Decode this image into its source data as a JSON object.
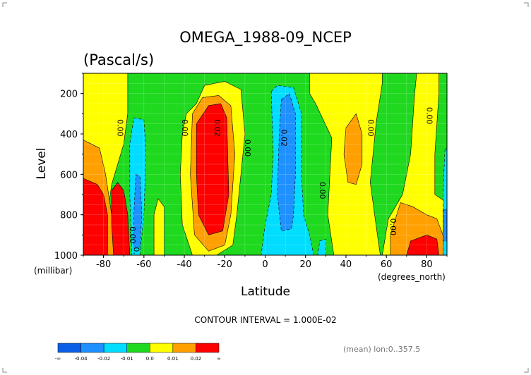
{
  "chart_data": {
    "type": "heatmap",
    "title": "OMEGA_1988-09_NCEP",
    "subtitle": "(Pascal/s)",
    "xlabel": "Latitude",
    "ylabel": "Level",
    "x_unit": "(degrees_north)",
    "y_unit": "(millibar)",
    "xlim": [
      -90,
      90
    ],
    "ylim": [
      1000,
      100
    ],
    "x_ticks": [
      -80,
      -60,
      -40,
      -20,
      0,
      20,
      40,
      60,
      80
    ],
    "y_ticks": [
      200,
      400,
      600,
      800,
      1000
    ],
    "grid": true,
    "contour_interval_text": "CONTOUR INTERVAL = 1.000E-02",
    "footer_note": "(mean) lon:0..357.5",
    "legend": {
      "placement": "bottom-left",
      "labels": [
        "-∞",
        "-0.04",
        "-0.02",
        "-0.01",
        "0.0",
        "0.01",
        "0.02",
        "∞"
      ],
      "colors": [
        "#0a5fe6",
        "#1e90ff",
        "#00ddff",
        "#1ed91e",
        "#ffff00",
        "#ffa000",
        "#ff0000"
      ]
    },
    "contour_labels": [
      {
        "text": "0.00",
        "lat": -73,
        "lev": 370
      },
      {
        "text": "0.00",
        "lat": -41,
        "lev": 370
      },
      {
        "text": "0.02",
        "lat": -25,
        "lev": 370
      },
      {
        "text": "0.00",
        "lat": -10,
        "lev": 470
      },
      {
        "text": "0.02",
        "lat": 8,
        "lev": 420
      },
      {
        "text": "0.00",
        "lat": 27,
        "lev": 680
      },
      {
        "text": "0.00",
        "lat": 51,
        "lev": 370
      },
      {
        "text": "0.00",
        "lat": 80,
        "lev": 310
      },
      {
        "text": "0.00",
        "lat": 62,
        "lev": 860
      },
      {
        "text": "0.00",
        "lat": -67,
        "lev": 900
      },
      {
        "text": "0.0",
        "lat": -65,
        "lev": 990
      }
    ],
    "regions": [
      {
        "category": "0.0",
        "fill": "#1ed91e",
        "polygon": [
          [
            -90,
            100
          ],
          [
            90,
            100
          ],
          [
            90,
            1000
          ],
          [
            -90,
            1000
          ]
        ]
      },
      {
        "category": "0.01",
        "fill": "#ffff00",
        "polygon": [
          [
            -90,
            100
          ],
          [
            -68,
            100
          ],
          [
            -68,
            300
          ],
          [
            -70,
            450
          ],
          [
            -76,
            650
          ],
          [
            -78,
            800
          ],
          [
            -76,
            1000
          ],
          [
            -90,
            1000
          ]
        ]
      },
      {
        "category": "0.01",
        "fill": "#ffff00",
        "polygon": [
          [
            -39,
            300
          ],
          [
            -34,
            250
          ],
          [
            -30,
            160
          ],
          [
            -20,
            140
          ],
          [
            -12,
            180
          ],
          [
            -10,
            400
          ],
          [
            -12,
            600
          ],
          [
            -14,
            800
          ],
          [
            -16,
            950
          ],
          [
            -24,
            1000
          ],
          [
            -36,
            1000
          ],
          [
            -41,
            850
          ],
          [
            -42,
            600
          ],
          [
            -41,
            400
          ]
        ]
      },
      {
        "category": "0.01",
        "fill": "#ffff00",
        "polygon": [
          [
            22,
            100
          ],
          [
            58,
            100
          ],
          [
            58,
            150
          ],
          [
            55,
            340
          ],
          [
            52,
            640
          ],
          [
            55,
            860
          ],
          [
            57,
            1000
          ],
          [
            34,
            1000
          ],
          [
            31,
            800
          ],
          [
            33,
            420
          ],
          [
            25,
            250
          ],
          [
            22,
            200
          ]
        ]
      },
      {
        "category": "0.01",
        "fill": "#ffff00",
        "polygon": [
          [
            75,
            100
          ],
          [
            86,
            100
          ],
          [
            86,
            200
          ],
          [
            84,
            500
          ],
          [
            84,
            700
          ],
          [
            90,
            740
          ],
          [
            90,
            1000
          ],
          [
            58,
            1000
          ],
          [
            61,
            820
          ],
          [
            68,
            700
          ],
          [
            72,
            500
          ],
          [
            74,
            200
          ]
        ]
      },
      {
        "category": "0.01",
        "fill": "#ffff00",
        "polygon": [
          [
            -53,
            720
          ],
          [
            -50,
            760
          ],
          [
            -50,
            1000
          ],
          [
            -55,
            1000
          ],
          [
            -55,
            800
          ]
        ]
      },
      {
        "category": "0.02",
        "fill": "#ffa000",
        "polygon": [
          [
            -90,
            430
          ],
          [
            -82,
            470
          ],
          [
            -79,
            600
          ],
          [
            -76,
            800
          ],
          [
            -75,
            1000
          ],
          [
            -90,
            1000
          ]
        ]
      },
      {
        "category": "0.02",
        "fill": "#ffa000",
        "polygon": [
          [
            -36,
            300
          ],
          [
            -31,
            220
          ],
          [
            -23,
            210
          ],
          [
            -17,
            260
          ],
          [
            -15,
            500
          ],
          [
            -17,
            800
          ],
          [
            -20,
            950
          ],
          [
            -28,
            980
          ],
          [
            -35,
            900
          ],
          [
            -37,
            600
          ]
        ]
      },
      {
        "category": "0.02",
        "fill": "#ffa000",
        "polygon": [
          [
            40,
            370
          ],
          [
            45,
            300
          ],
          [
            48,
            400
          ],
          [
            48,
            550
          ],
          [
            45,
            650
          ],
          [
            41,
            640
          ],
          [
            39,
            500
          ]
        ]
      },
      {
        "category": "0.02",
        "fill": "#ffa000",
        "polygon": [
          [
            62,
            900
          ],
          [
            67,
            740
          ],
          [
            73,
            760
          ],
          [
            80,
            800
          ],
          [
            85,
            820
          ],
          [
            88,
            900
          ],
          [
            88,
            1000
          ],
          [
            62,
            1000
          ]
        ]
      },
      {
        "category": "0.02+",
        "fill": "#ff0000",
        "polygon": [
          [
            -90,
            620
          ],
          [
            -83,
            650
          ],
          [
            -80,
            700
          ],
          [
            -78,
            800
          ],
          [
            -78,
            1000
          ],
          [
            -90,
            1000
          ]
        ]
      },
      {
        "category": "0.02+",
        "fill": "#ff0000",
        "polygon": [
          [
            -34,
            350
          ],
          [
            -28,
            260
          ],
          [
            -22,
            250
          ],
          [
            -19,
            320
          ],
          [
            -18,
            700
          ],
          [
            -21,
            880
          ],
          [
            -28,
            900
          ],
          [
            -33,
            800
          ],
          [
            -34,
            600
          ]
        ]
      },
      {
        "category": "0.02+",
        "fill": "#ff0000",
        "polygon": [
          [
            -76,
            680
          ],
          [
            -73,
            640
          ],
          [
            -70,
            680
          ],
          [
            -68,
            800
          ],
          [
            -67,
            1000
          ],
          [
            -75,
            1000
          ],
          [
            -76,
            850
          ]
        ]
      },
      {
        "category": "0.02+",
        "fill": "#ff0000",
        "polygon": [
          [
            72,
            930
          ],
          [
            80,
            900
          ],
          [
            85,
            920
          ],
          [
            86,
            1000
          ],
          [
            70,
            1000
          ]
        ]
      },
      {
        "category": "-0.01",
        "fill": "#00ddff",
        "polygon": [
          [
            -65,
            320
          ],
          [
            -60,
            330
          ],
          [
            -59,
            500
          ],
          [
            -60,
            800
          ],
          [
            -62,
            1000
          ],
          [
            -66,
            1000
          ],
          [
            -67,
            700
          ],
          [
            -67,
            450
          ]
        ]
      },
      {
        "category": "-0.01",
        "fill": "#00ddff",
        "polygon": [
          [
            3,
            190
          ],
          [
            6,
            160
          ],
          [
            14,
            170
          ],
          [
            18,
            300
          ],
          [
            18,
            600
          ],
          [
            19,
            800
          ],
          [
            22,
            900
          ],
          [
            24,
            1000
          ],
          [
            -2,
            1000
          ],
          [
            0,
            850
          ],
          [
            3,
            700
          ],
          [
            4,
            500
          ]
        ]
      },
      {
        "category": "-0.01",
        "fill": "#00ddff",
        "polygon": [
          [
            27,
            930
          ],
          [
            30,
            920
          ],
          [
            30,
            1000
          ],
          [
            26,
            1000
          ]
        ]
      },
      {
        "category": "-0.01",
        "fill": "#00ddff",
        "polygon": [
          [
            89,
            480
          ],
          [
            90,
            470
          ],
          [
            90,
            1000
          ],
          [
            88,
            1000
          ],
          [
            88,
            700
          ]
        ]
      },
      {
        "category": "-0.02",
        "fill": "#1e90ff",
        "polygon": [
          [
            -64,
            600
          ],
          [
            -62,
            610
          ],
          [
            -61,
            800
          ],
          [
            -62,
            960
          ],
          [
            -65,
            960
          ],
          [
            -65,
            800
          ]
        ]
      },
      {
        "category": "-0.02",
        "fill": "#1e90ff",
        "polygon": [
          [
            8,
            230
          ],
          [
            12,
            200
          ],
          [
            15,
            300
          ],
          [
            15,
            600
          ],
          [
            14,
            800
          ],
          [
            13,
            870
          ],
          [
            8,
            880
          ],
          [
            6,
            700
          ],
          [
            7,
            400
          ]
        ]
      },
      {
        "category": "-0.02",
        "fill": "#1e90ff",
        "polygon": [
          [
            88,
            780
          ],
          [
            90,
            770
          ],
          [
            90,
            930
          ],
          [
            88,
            930
          ]
        ]
      }
    ]
  }
}
